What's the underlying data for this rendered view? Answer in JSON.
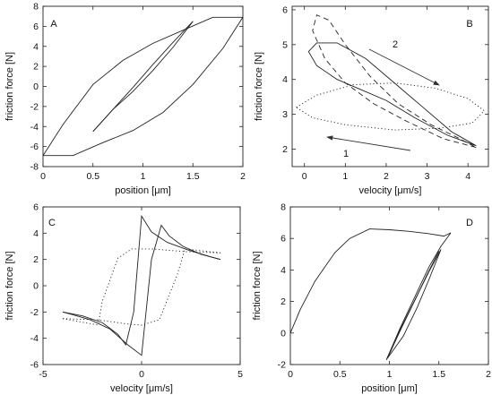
{
  "chart_data": [
    {
      "panel": "A",
      "type": "line",
      "xlabel": "position [μm]",
      "ylabel": "friction force [N]",
      "xlim": [
        0,
        2
      ],
      "ylim": [
        -8,
        8
      ],
      "xticks": [
        "0",
        "0.5",
        "1",
        "1.5",
        "2"
      ],
      "yticks": [
        "-8",
        "-6",
        "-4",
        "-2",
        "0",
        "2",
        "4",
        "6",
        "8"
      ],
      "series": [
        {
          "style": "solid",
          "points": [
            [
              0,
              -6.9
            ],
            [
              0.3,
              -6.9
            ],
            [
              0.6,
              -5.6
            ],
            [
              0.9,
              -4.4
            ],
            [
              1.2,
              -2.6
            ],
            [
              1.5,
              0.2
            ],
            [
              1.8,
              3.8
            ],
            [
              2,
              6.9
            ]
          ]
        },
        {
          "style": "solid",
          "points": [
            [
              2,
              6.9
            ],
            [
              1.7,
              6.9
            ],
            [
              1.4,
              5.6
            ],
            [
              1.1,
              4.3
            ],
            [
              0.8,
              2.6
            ],
            [
              0.5,
              0.2
            ],
            [
              0.2,
              -3.8
            ],
            [
              0,
              -6.9
            ]
          ]
        },
        {
          "style": "solid",
          "points": [
            [
              0.5,
              -4.5
            ],
            [
              0.7,
              -2.3
            ],
            [
              0.9,
              -0.5
            ],
            [
              1.1,
              1.6
            ],
            [
              1.3,
              3.9
            ],
            [
              1.5,
              6.5
            ]
          ]
        },
        {
          "style": "solid",
          "points": [
            [
              1.5,
              6.5
            ],
            [
              1.3,
              4.4
            ],
            [
              1.1,
              2.2
            ],
            [
              0.9,
              -0.1
            ],
            [
              0.7,
              -2.3
            ],
            [
              0.5,
              -4.5
            ]
          ]
        }
      ]
    },
    {
      "panel": "B",
      "type": "line",
      "xlabel": "velocity [μm/s]",
      "ylabel": "friction force [N]",
      "xlim": [
        -0.3,
        4.5
      ],
      "ylim": [
        1.5,
        6.1
      ],
      "xticks": [
        "0",
        "1",
        "2",
        "3",
        "4"
      ],
      "yticks": [
        "2",
        "3",
        "4",
        "5",
        "6"
      ],
      "annotations": [
        "1",
        "2"
      ],
      "series": [
        {
          "style": "solid",
          "points": [
            [
              4.2,
              2.1
            ],
            [
              3.5,
              2.4
            ],
            [
              2.7,
              2.9
            ],
            [
              2,
              3.4
            ],
            [
              1.4,
              3.7
            ],
            [
              0.8,
              4
            ],
            [
              0.3,
              4.4
            ],
            [
              0.1,
              4.8
            ],
            [
              0.3,
              5.05
            ],
            [
              0.8,
              5.05
            ],
            [
              1.5,
              4.6
            ],
            [
              2.2,
              3.9
            ],
            [
              2.9,
              3.2
            ],
            [
              3.6,
              2.5
            ],
            [
              4.2,
              2.1
            ]
          ]
        },
        {
          "style": "dashed",
          "points": [
            [
              4.2,
              2.05
            ],
            [
              3.4,
              2.3
            ],
            [
              2.5,
              2.8
            ],
            [
              1.7,
              3.3
            ],
            [
              1,
              3.9
            ],
            [
              0.5,
              4.6
            ],
            [
              0.2,
              5.4
            ],
            [
              0.3,
              5.85
            ],
            [
              0.6,
              5.7
            ],
            [
              1,
              5
            ],
            [
              1.6,
              4.1
            ],
            [
              2.3,
              3.3
            ],
            [
              3.1,
              2.7
            ],
            [
              3.8,
              2.3
            ],
            [
              4.2,
              2.05
            ]
          ]
        },
        {
          "style": "dotted",
          "points": [
            [
              -0.2,
              3.2
            ],
            [
              0.3,
              3.55
            ],
            [
              1.2,
              3.85
            ],
            [
              2.2,
              3.9
            ],
            [
              3.2,
              3.75
            ],
            [
              4,
              3.45
            ],
            [
              4.4,
              3.1
            ],
            [
              4.1,
              2.75
            ],
            [
              3.3,
              2.6
            ],
            [
              2.2,
              2.55
            ],
            [
              1,
              2.7
            ],
            [
              0.2,
              2.9
            ],
            [
              -0.2,
              3.2
            ]
          ]
        }
      ]
    },
    {
      "panel": "C",
      "type": "line",
      "xlabel": "velocity [μm/s]",
      "ylabel": "friction force [N]",
      "xlim": [
        -5,
        5
      ],
      "ylim": [
        -6,
        6
      ],
      "xticks": [
        "-5",
        "0",
        "5"
      ],
      "yticks": [
        "-6",
        "-4",
        "-2",
        "0",
        "2",
        "4",
        "6"
      ],
      "series": [
        {
          "style": "solid",
          "points": [
            [
              -4,
              -2
            ],
            [
              -3,
              -2.3
            ],
            [
              -2,
              -2.8
            ],
            [
              -1.2,
              -3.7
            ],
            [
              -0.8,
              -4.5
            ],
            [
              -0.4,
              -2
            ],
            [
              0,
              5.3
            ],
            [
              0.5,
              4.1
            ],
            [
              1.3,
              3.3
            ],
            [
              2.4,
              2.7
            ],
            [
              3.5,
              2.2
            ],
            [
              4,
              2
            ]
          ]
        },
        {
          "style": "solid",
          "points": [
            [
              4,
              2
            ],
            [
              3,
              2.4
            ],
            [
              2.1,
              3
            ],
            [
              1.4,
              3.8
            ],
            [
              1,
              4.6
            ],
            [
              0.5,
              2
            ],
            [
              0,
              -5.3
            ],
            [
              -0.7,
              -4.5
            ],
            [
              -1.6,
              -3.3
            ],
            [
              -2.6,
              -2.6
            ],
            [
              -3.5,
              -2.2
            ],
            [
              -4,
              -2
            ]
          ]
        },
        {
          "style": "dotted",
          "points": [
            [
              -4,
              -2.5
            ],
            [
              -2.2,
              -3
            ],
            [
              -2,
              -1.2
            ],
            [
              -1.2,
              2.1
            ],
            [
              -0.5,
              2.8
            ],
            [
              0.5,
              2.8
            ],
            [
              2.2,
              2.6
            ],
            [
              4,
              2.5
            ]
          ]
        },
        {
          "style": "dotted",
          "points": [
            [
              4,
              2.5
            ],
            [
              2.2,
              2.8
            ],
            [
              1.8,
              0.8
            ],
            [
              0.9,
              -2.6
            ],
            [
              0,
              -3
            ],
            [
              -0.8,
              -2.9
            ],
            [
              -2.2,
              -2.6
            ],
            [
              -4,
              -2.5
            ]
          ]
        }
      ]
    },
    {
      "panel": "D",
      "type": "line",
      "xlabel": "position [μm]",
      "ylabel": "friction force [N]",
      "xlim": [
        0,
        2
      ],
      "ylim": [
        -2,
        8
      ],
      "xticks": [
        "0",
        "0.5",
        "1",
        "1.5",
        "2"
      ],
      "yticks": [
        "-2",
        "0",
        "2",
        "4",
        "6",
        "8"
      ],
      "series": [
        {
          "style": "solid",
          "points": [
            [
              0,
              0
            ],
            [
              0.1,
              1.5
            ],
            [
              0.25,
              3.3
            ],
            [
              0.45,
              5.1
            ],
            [
              0.6,
              6
            ],
            [
              0.8,
              6.6
            ],
            [
              1,
              6.55
            ],
            [
              1.2,
              6.45
            ],
            [
              1.4,
              6.3
            ],
            [
              1.55,
              6.15
            ],
            [
              1.62,
              6.35
            ]
          ]
        },
        {
          "style": "solid",
          "points": [
            [
              1.62,
              6.35
            ],
            [
              1.52,
              5.5
            ],
            [
              1.4,
              4.2
            ],
            [
              1.25,
              2.2
            ],
            [
              1.1,
              0.2
            ],
            [
              0.97,
              -1.7
            ]
          ]
        },
        {
          "style": "solid",
          "points": [
            [
              0.97,
              -1.7
            ],
            [
              1.1,
              0.1
            ],
            [
              1.25,
              2
            ],
            [
              1.4,
              3.9
            ],
            [
              1.52,
              5.3
            ]
          ]
        },
        {
          "style": "solid",
          "points": [
            [
              1.52,
              5.3
            ],
            [
              1.4,
              3.4
            ],
            [
              1.28,
              1.6
            ],
            [
              1.14,
              -0.2
            ],
            [
              0.98,
              -1.6
            ]
          ]
        },
        {
          "style": "solid",
          "points": [
            [
              0.98,
              -1.6
            ],
            [
              1.12,
              0.3
            ],
            [
              1.26,
              2.1
            ],
            [
              1.38,
              3.7
            ],
            [
              1.5,
              5.2
            ]
          ]
        }
      ]
    }
  ]
}
